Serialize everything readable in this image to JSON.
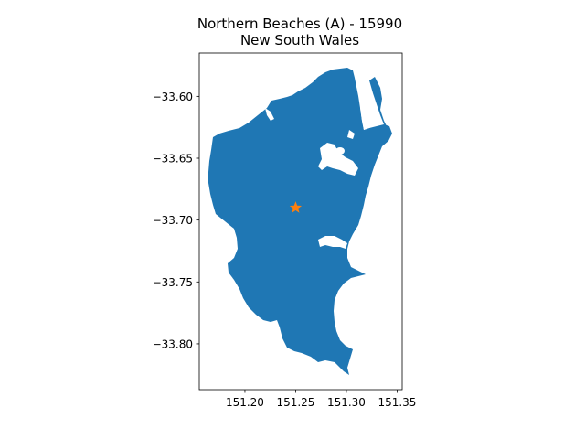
{
  "map": {
    "title_line1": "Northern Beaches (A) - 15990",
    "title_line2": "New South Wales",
    "region_color": "#1f77b4",
    "marker_color": "#ff7f0e",
    "marker_icon": "star-icon",
    "marker_lonlat": [
      151.25,
      -33.69
    ],
    "xlim": [
      151.155,
      151.355
    ],
    "ylim": [
      -33.837,
      -33.565
    ],
    "x_ticks": [
      151.2,
      151.25,
      151.3,
      151.35
    ],
    "x_tick_labels": [
      "151.20",
      "151.25",
      "151.30",
      "151.35"
    ],
    "y_ticks": [
      -33.6,
      -33.65,
      -33.7,
      -33.75,
      -33.8
    ],
    "y_tick_labels": [
      "−33.60",
      "−33.65",
      "−33.70",
      "−33.75",
      "−33.80"
    ]
  }
}
